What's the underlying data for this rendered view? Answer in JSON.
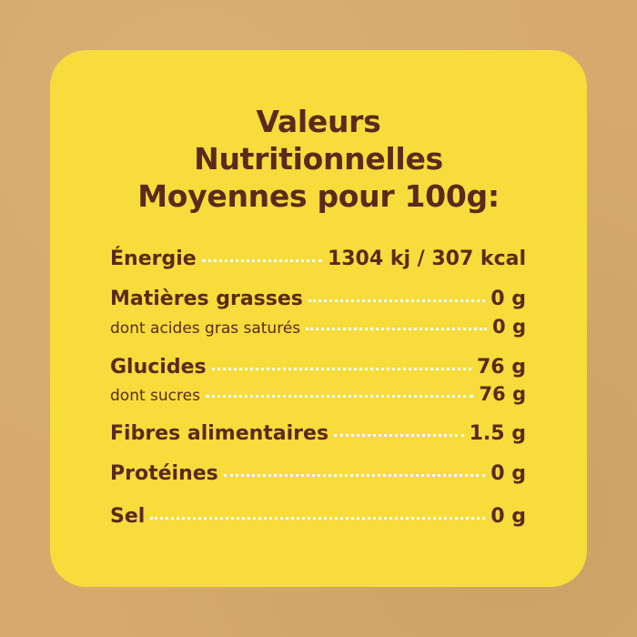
{
  "title": {
    "line1": "Valeurs",
    "line2": "Nutritionnelles",
    "line3": "Moyennes pour 100g:"
  },
  "colors": {
    "background": "#d6aa6c",
    "card": "#f7dc3c",
    "text": "#5b2a1d",
    "dots": "#ffffff"
  },
  "rows": [
    {
      "label": "Énergie",
      "value": "1304 kj / 307 kcal"
    },
    {
      "label": "Matières grasses",
      "value": "0 g"
    },
    {
      "label": "dont acides gras saturés",
      "value": "0 g"
    },
    {
      "label": "Glucides",
      "value": "76 g"
    },
    {
      "label": "dont sucres",
      "value": "76 g"
    },
    {
      "label": "Fibres alimentaires",
      "value": "1.5 g"
    },
    {
      "label": "Protéines",
      "value": "0 g"
    },
    {
      "label": "Sel",
      "value": "0 g"
    }
  ]
}
